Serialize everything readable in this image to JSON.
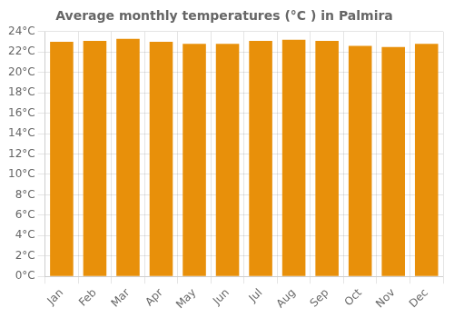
{
  "chart_data": {
    "type": "bar",
    "title": "Average monthly temperatures (°C ) in Palmira",
    "categories": [
      "Jan",
      "Feb",
      "Mar",
      "Apr",
      "May",
      "Jun",
      "Jul",
      "Aug",
      "Sep",
      "Oct",
      "Nov",
      "Dec"
    ],
    "values": [
      23.0,
      23.1,
      23.3,
      23.0,
      22.8,
      22.8,
      23.1,
      23.2,
      23.1,
      22.6,
      22.5,
      22.8
    ],
    "color": "#E8900A",
    "ylim": [
      0,
      24
    ],
    "yticks": [
      {
        "value": 0,
        "label": "0°C"
      },
      {
        "value": 2,
        "label": "2°C"
      },
      {
        "value": 4,
        "label": "4°C"
      },
      {
        "value": 6,
        "label": "6°C"
      },
      {
        "value": 8,
        "label": "8°C"
      },
      {
        "value": 10,
        "label": "10°C"
      },
      {
        "value": 12,
        "label": "12°C"
      },
      {
        "value": 14,
        "label": "14°C"
      },
      {
        "value": 16,
        "label": "16°C"
      },
      {
        "value": 18,
        "label": "18°C"
      },
      {
        "value": 20,
        "label": "20°C"
      },
      {
        "value": 22,
        "label": "22°C"
      },
      {
        "value": 24,
        "label": "24°C"
      }
    ],
    "grid": true
  }
}
